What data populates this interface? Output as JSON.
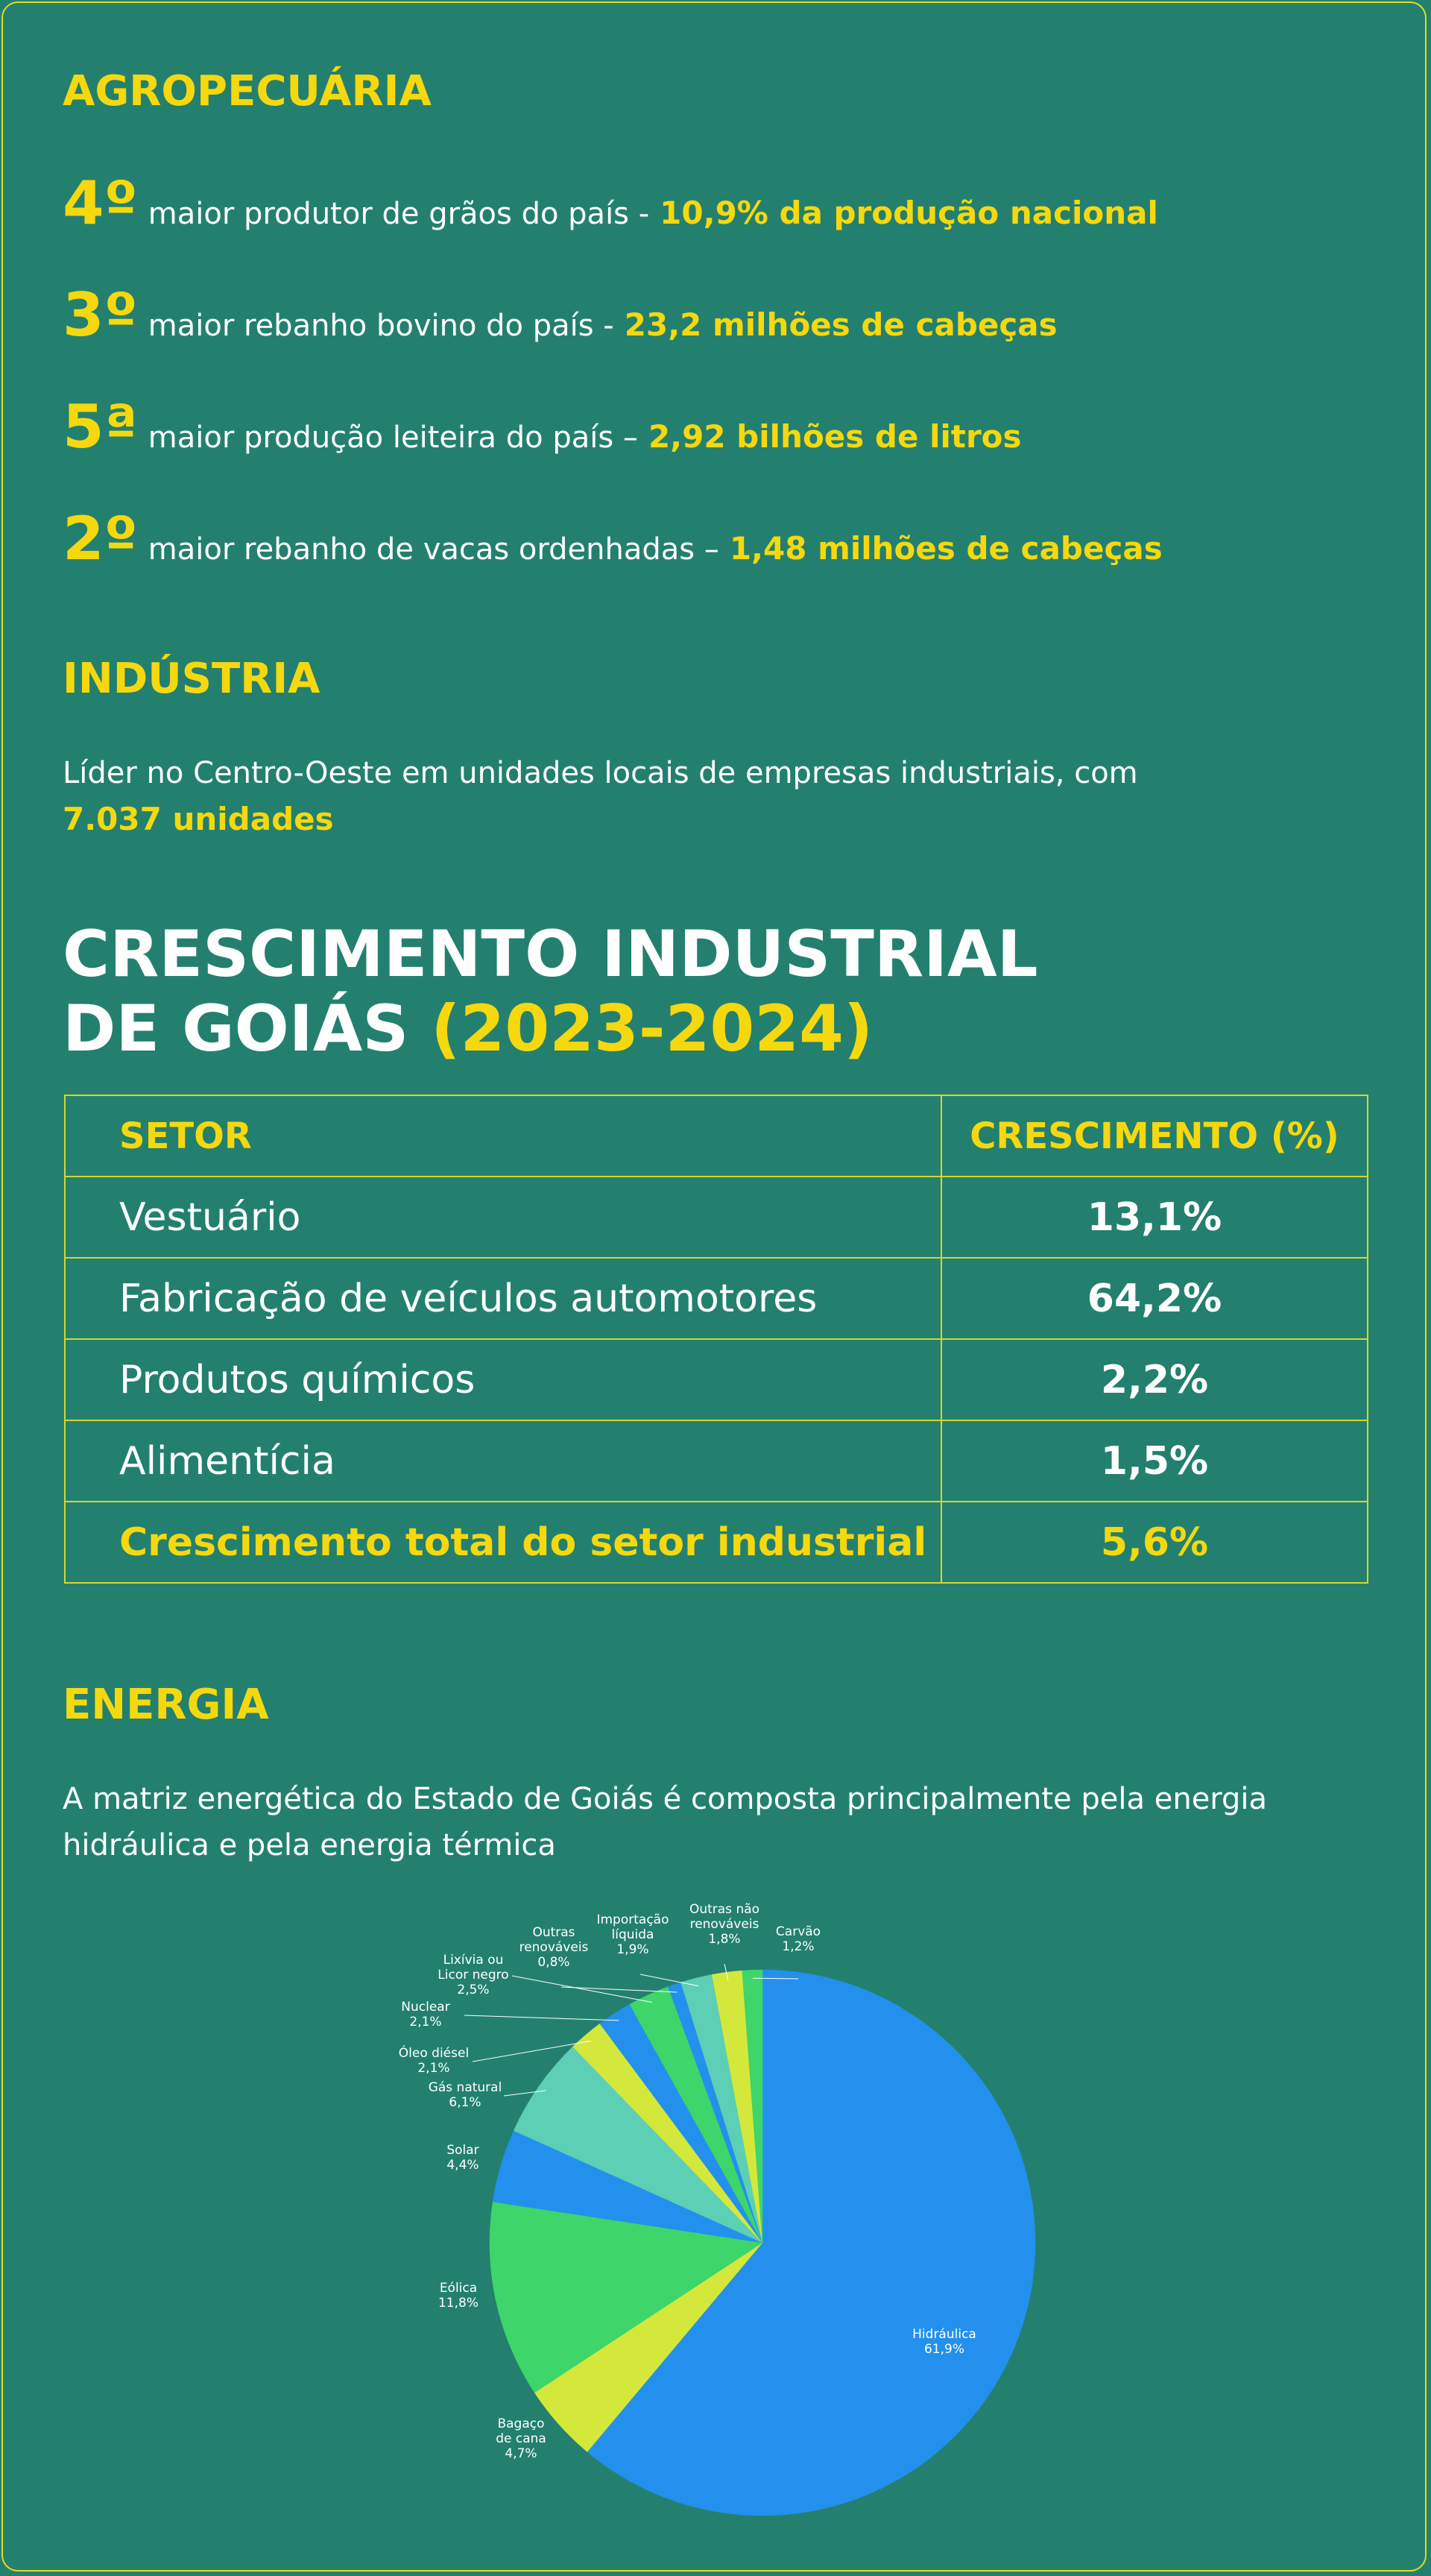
{
  "agro": {
    "title": "AGROPECUÁRIA",
    "items": [
      {
        "rank": "4º",
        "text": "maior produtor de grãos do país -",
        "highlight": "10,9% da produção nacional"
      },
      {
        "rank": "3º",
        "text": "maior rebanho bovino do país -",
        "highlight": "23,2 milhões de cabeças"
      },
      {
        "rank": "5ª",
        "text": "maior produção leiteira do país –",
        "highlight": "2,92 bilhões de litros"
      },
      {
        "rank": "2º",
        "text": "maior rebanho de vacas ordenhadas –",
        "highlight": "1,48 milhões de cabeças"
      }
    ]
  },
  "industria": {
    "title": "INDÚSTRIA",
    "text": "Líder no Centro-Oeste em unidades locais de empresas industriais, com",
    "highlight": "7.037 unidades"
  },
  "crescimento": {
    "title_line1": "CRESCIMENTO INDUSTRIAL",
    "title_line2": "DE GOIÁS",
    "title_years": "(2023-2024)",
    "table": {
      "header": [
        "SETOR",
        "CRESCIMENTO (%)"
      ],
      "rows": [
        [
          "Vestuário",
          "13,1%"
        ],
        [
          "Fabricação de veículos automotores",
          "64,2%"
        ],
        [
          "Produtos químicos",
          "2,2%"
        ],
        [
          "Alimentícia",
          "1,5%"
        ]
      ],
      "total": [
        "Crescimento total do setor industrial",
        "5,6%"
      ]
    }
  },
  "energia": {
    "title": "ENERGIA",
    "text_line1": "A matriz energética do Estado de Goiás é composta principalmente pela energia",
    "text_line2": "hidráulica e pela energia térmica"
  },
  "chart_data": {
    "type": "pie",
    "categories": [
      "Hidráulica",
      "Bagaço de cana",
      "Eólica",
      "Solar",
      "Gás natural",
      "Óleo diésel",
      "Nuclear",
      "Lixívia ou Licor negro",
      "Outras renováveis",
      "Importação líquida",
      "Outras não renováveis",
      "Carvão"
    ],
    "values": [
      61.9,
      4.7,
      11.8,
      4.4,
      6.1,
      2.1,
      2.1,
      2.5,
      0.8,
      1.9,
      1.8,
      1.2
    ],
    "value_labels": [
      "61,9%",
      "4,7%",
      "11,8%",
      "4,4%",
      "6,1%",
      "2,1%",
      "2,1%",
      "2,5%",
      "0,8%",
      "1,9%",
      "1,8%",
      "1,2%"
    ],
    "colors": [
      "#2390ee",
      "#d3e83a",
      "#3ed56a",
      "#2390ee",
      "#5ccfb4",
      "#d3e83a",
      "#2390ee",
      "#3ed56a",
      "#2390ee",
      "#5ccfb4",
      "#d3e83a",
      "#3ed56a"
    ]
  }
}
